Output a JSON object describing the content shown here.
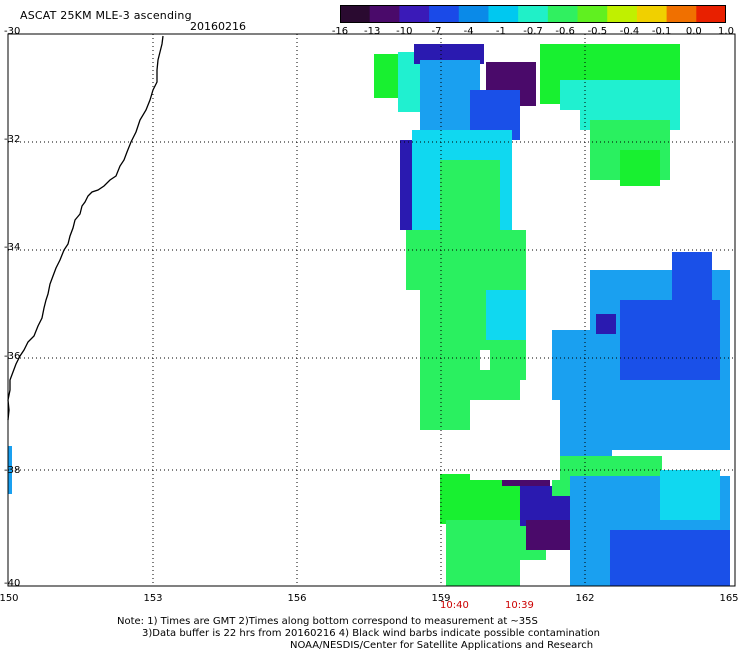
{
  "header": {
    "title": "ASCAT 25KM MLE-3 ascending",
    "date": "20160216"
  },
  "colorbar": {
    "labels": [
      "-16",
      "-13",
      "-10",
      "-7",
      "-4",
      "-1",
      "-0.7",
      "-0.6",
      "-0.5",
      "-0.4",
      "-0.1",
      "0.0",
      "1.0"
    ],
    "colors": [
      "#2a0a30",
      "#4a0a6a",
      "#3a1ab8",
      "#1a4ae8",
      "#0a8ae8",
      "#00c8f0",
      "#20f0c8",
      "#30f060",
      "#60f020",
      "#c0f000",
      "#f0d000",
      "#f07000",
      "#e82000"
    ]
  },
  "axes": {
    "lat_labels": [
      "-30",
      "-32",
      "-34",
      "-36",
      "-38",
      "-40"
    ],
    "lon_labels": [
      "150",
      "153",
      "156",
      "159",
      "162",
      "165"
    ]
  },
  "pass_times": [
    "10:40",
    "10:39"
  ],
  "notes": [
    "Note: 1) Times are GMT 2)Times along bottom correspond to measurement at ~35S",
    "3)Data buffer is 22 hrs from 20160216 4) Black wind barbs indicate possible contamination",
    "NOAA/NESDIS/Center for Satellite Applications and Research"
  ],
  "legend_colors": {
    "purple": "#4a0a6a",
    "dark_blue": "#2a1ab0",
    "blue": "#1a50e8",
    "light_blue": "#1aa0f0",
    "cyan": "#10d8f0",
    "aqua": "#20f0d0",
    "green": "#2af060",
    "bright_green": "#18f030"
  }
}
